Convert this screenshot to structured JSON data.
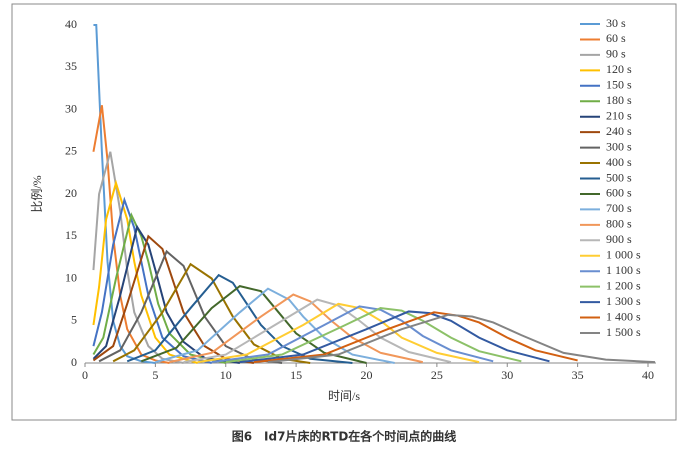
{
  "chart_data": {
    "type": "line",
    "caption": "图6　Id7片床的RTD在各个时间点的曲线",
    "xlabel": "时间/s",
    "ylabel": "比例/%",
    "xlim": [
      0,
      40
    ],
    "xticks": [
      0,
      5,
      10,
      15,
      20,
      25,
      30,
      35,
      40
    ],
    "ylim": [
      0,
      40
    ],
    "yticks": [
      0,
      5,
      10,
      15,
      20,
      25,
      30,
      35,
      40
    ],
    "series": [
      {
        "name": "30 s",
        "color": "#5b9bd5",
        "x": [
          0.6,
          0.8,
          1.2,
          1.6,
          2,
          2.5,
          3,
          4,
          5
        ],
        "values": [
          40,
          40,
          25,
          12,
          5,
          2,
          0.8,
          0.2,
          0
        ]
      },
      {
        "name": "60 s",
        "color": "#ed7d31",
        "x": [
          0.6,
          1.2,
          1.6,
          2,
          2.5,
          3,
          4,
          5,
          6
        ],
        "values": [
          25,
          30.5,
          24,
          15,
          8,
          4,
          1,
          0.3,
          0
        ]
      },
      {
        "name": "90 s",
        "color": "#a5a5a5",
        "x": [
          0.6,
          1,
          1.8,
          2.5,
          3,
          3.5,
          4.5,
          5.5,
          7
        ],
        "values": [
          11,
          20,
          25,
          18,
          11,
          6,
          2,
          0.5,
          0
        ]
      },
      {
        "name": "120 s",
        "color": "#ffc000",
        "x": [
          0.6,
          1,
          1.5,
          2.2,
          3,
          3.5,
          4,
          5,
          6,
          8
        ],
        "values": [
          4.5,
          9,
          17,
          21.3,
          17,
          12,
          8,
          3,
          1,
          0
        ]
      },
      {
        "name": "150 s",
        "color": "#4472c4",
        "x": [
          0.6,
          1.2,
          2,
          2.8,
          3.5,
          4,
          4.5,
          5.5,
          7,
          9
        ],
        "values": [
          2,
          6,
          14,
          19.3,
          16,
          12,
          8,
          3,
          0.8,
          0
        ]
      },
      {
        "name": "180 s",
        "color": "#70ad47",
        "x": [
          0.6,
          1.3,
          2.2,
          3.3,
          4,
          4.5,
          5.2,
          6,
          7.5,
          10
        ],
        "values": [
          1,
          3,
          10,
          17.5,
          15,
          12,
          7,
          3.5,
          1,
          0
        ]
      },
      {
        "name": "210 s",
        "color": "#264478",
        "x": [
          0.6,
          1.5,
          2.5,
          3.7,
          4.5,
          5,
          5.8,
          7,
          8.5,
          11
        ],
        "values": [
          0.5,
          2,
          8,
          16.1,
          14,
          11,
          6,
          2.5,
          0.6,
          0
        ]
      },
      {
        "name": "240 s",
        "color": "#9e480e",
        "x": [
          0.6,
          2,
          3,
          4.5,
          5.5,
          6,
          7,
          8.5,
          10,
          12
        ],
        "values": [
          0.3,
          2,
          7,
          15,
          13.5,
          11,
          6,
          2,
          0.5,
          0
        ]
      },
      {
        "name": "300 s",
        "color": "#636363",
        "x": [
          1,
          2.5,
          4,
          5.8,
          7,
          7.5,
          8.5,
          10,
          12,
          14
        ],
        "values": [
          0.2,
          1.5,
          6,
          13.2,
          11.5,
          9.5,
          5.5,
          2,
          0.4,
          0
        ]
      },
      {
        "name": "400 s",
        "color": "#997300",
        "x": [
          2,
          3.5,
          5.5,
          7.5,
          9,
          9.5,
          10.5,
          12,
          14,
          16
        ],
        "values": [
          0.2,
          1.5,
          6,
          11.7,
          10,
          8.5,
          5.5,
          2.2,
          0.5,
          0
        ]
      },
      {
        "name": "500 s",
        "color": "#255e91",
        "x": [
          3,
          5,
          7.5,
          9.5,
          10.5,
          11.5,
          12.5,
          14,
          16,
          19
        ],
        "values": [
          0.2,
          1.5,
          6.5,
          10.4,
          9.5,
          7,
          4.5,
          2,
          0.5,
          0
        ]
      },
      {
        "name": "600 s",
        "color": "#43682b",
        "x": [
          4,
          6.5,
          9,
          11,
          12.5,
          13.5,
          15,
          17,
          20
        ],
        "values": [
          0.2,
          1.8,
          6.5,
          9.1,
          8.5,
          6.5,
          3.5,
          1.2,
          0
        ]
      },
      {
        "name": "700 s",
        "color": "#7cafdd",
        "x": [
          5,
          8,
          11,
          13,
          14.5,
          15.5,
          17,
          19,
          22
        ],
        "values": [
          0.1,
          1.5,
          6,
          8.8,
          7.5,
          5.5,
          3,
          1,
          0
        ]
      },
      {
        "name": "800 s",
        "color": "#f1975a",
        "x": [
          6,
          9,
          12.5,
          14.8,
          16,
          17.5,
          19,
          21,
          24
        ],
        "values": [
          0.1,
          1.2,
          5.5,
          8.1,
          7.3,
          5,
          3,
          1.2,
          0.1
        ]
      },
      {
        "name": "900 s",
        "color": "#b7b7b7",
        "x": [
          7,
          10,
          14,
          16.5,
          18,
          19.5,
          21,
          23,
          26
        ],
        "values": [
          0.1,
          1,
          5,
          7.5,
          6.8,
          5,
          3,
          1.3,
          0.1
        ]
      },
      {
        "name": "1 000 s",
        "color": "#ffcd33",
        "x": [
          8,
          11.5,
          15.5,
          18,
          19.5,
          21,
          22.5,
          25,
          28
        ],
        "values": [
          0.1,
          1,
          4.5,
          7,
          6.5,
          5,
          3,
          1.2,
          0.1
        ]
      },
      {
        "name": "1 100 s",
        "color": "#698ed0",
        "x": [
          9,
          13,
          17,
          19.5,
          21,
          22.5,
          24,
          26,
          29
        ],
        "values": [
          0.1,
          1,
          4.5,
          6.7,
          6.3,
          5,
          3.2,
          1.5,
          0.2
        ]
      },
      {
        "name": "1 200 s",
        "color": "#8cc168",
        "x": [
          10,
          14,
          18.5,
          21,
          22.5,
          24,
          26,
          28,
          31
        ],
        "values": [
          0.1,
          1,
          4.5,
          6.5,
          6.2,
          5,
          3,
          1.4,
          0.2
        ]
      },
      {
        "name": "1 300 s",
        "color": "#335aa1",
        "x": [
          11,
          15.5,
          20,
          23,
          24.5,
          26,
          28,
          30,
          33
        ],
        "values": [
          0.1,
          1,
          4,
          6.1,
          5.9,
          5,
          3,
          1.5,
          0.2
        ]
      },
      {
        "name": "1 400 s",
        "color": "#d26012",
        "x": [
          12,
          17,
          21.5,
          24.8,
          26.5,
          28,
          30,
          32,
          35
        ],
        "values": [
          0.1,
          1,
          4,
          6,
          5.6,
          4.8,
          3,
          1.5,
          0.3
        ]
      },
      {
        "name": "1 500 s",
        "color": "#848484",
        "x": [
          13,
          18,
          22.5,
          25.8,
          27.5,
          29,
          31,
          34,
          37,
          40.5
        ],
        "values": [
          0.1,
          1,
          4,
          5.7,
          5.5,
          4.8,
          3.3,
          1.2,
          0.4,
          0.1
        ]
      }
    ]
  }
}
